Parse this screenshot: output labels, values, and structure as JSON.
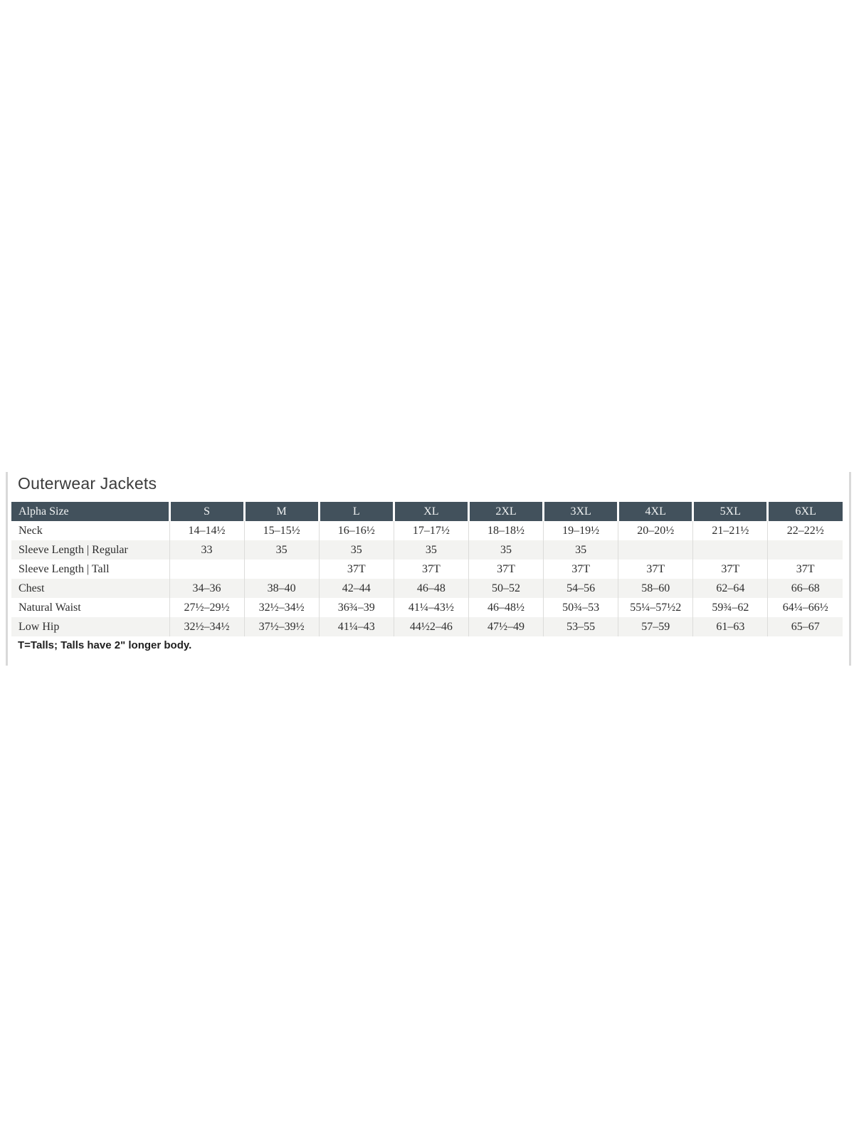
{
  "section": {
    "title": "Outerwear Jackets"
  },
  "table": {
    "colors": {
      "header_bg": "#42515c",
      "header_fg": "#f1f3f3",
      "row_alt_bg": "#f3f3f1",
      "divider": "#dcdcda",
      "body_fg": "#2d2d2d",
      "panel_border": "#d9d9d9"
    },
    "columns": [
      "Alpha Size",
      "S",
      "M",
      "L",
      "XL",
      "2XL",
      "3XL",
      "4XL",
      "5XL",
      "6XL"
    ],
    "rows": [
      {
        "label": "Neck",
        "values": [
          "14–14½",
          "15–15½",
          "16–16½",
          "17–17½",
          "18–18½",
          "19–19½",
          "20–20½",
          "21–21½",
          "22–22½"
        ]
      },
      {
        "label": "Sleeve Length | Regular",
        "values": [
          "33",
          "35",
          "35",
          "35",
          "35",
          "35",
          "",
          "",
          ""
        ]
      },
      {
        "label": "Sleeve Length | Tall",
        "values": [
          "",
          "",
          "37T",
          "37T",
          "37T",
          "37T",
          "37T",
          "37T",
          "37T"
        ]
      },
      {
        "label": "Chest",
        "values": [
          "34–36",
          "38–40",
          "42–44",
          "46–48",
          "50–52",
          "54–56",
          "58–60",
          "62–64",
          "66–68"
        ]
      },
      {
        "label": "Natural Waist",
        "values": [
          "27½–29½",
          "32½–34½",
          "36¾–39",
          "41¼–43½",
          "46–48½",
          "50¾–53",
          "55¼–57½2",
          "59¾–62",
          "64¼–66½"
        ]
      },
      {
        "label": "Low Hip",
        "values": [
          "32½–34½",
          "37½–39½",
          "41¼–43",
          "44½2–46",
          "47½–49",
          "53–55",
          "57–59",
          "61–63",
          "65–67"
        ]
      }
    ]
  },
  "footnote": {
    "text": "T=Talls; Talls have 2\" longer body."
  }
}
